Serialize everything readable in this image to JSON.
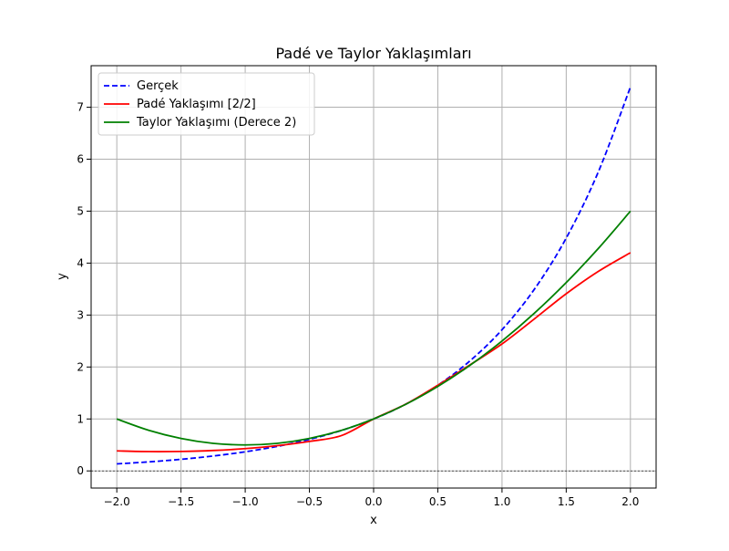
{
  "chart_data": {
    "type": "line",
    "title": "Padé ve Taylor Yaklaşımları",
    "xlabel": "x",
    "ylabel": "y",
    "xlim": [
      -2.2,
      2.2
    ],
    "ylim": [
      -0.33,
      7.8
    ],
    "xticks": [
      -2.0,
      -1.5,
      -1.0,
      -0.5,
      0.0,
      0.5,
      1.0,
      1.5,
      2.0
    ],
    "xtick_labels": [
      "−2.0",
      "−1.5",
      "−1.0",
      "−0.5",
      "0.0",
      "0.5",
      "1.0",
      "1.5",
      "2.0"
    ],
    "yticks": [
      0,
      1,
      2,
      3,
      4,
      5,
      6,
      7
    ],
    "ytick_labels": [
      "0",
      "1",
      "2",
      "3",
      "4",
      "5",
      "6",
      "7"
    ],
    "grid": true,
    "legend_position": "top-left",
    "reference_line": {
      "y": 0,
      "color": "#000000",
      "style": "dashed"
    },
    "x": [
      -2.0,
      -1.75,
      -1.5,
      -1.25,
      -1.0,
      -0.75,
      -0.5,
      -0.25,
      0.0,
      0.25,
      0.5,
      0.75,
      1.0,
      1.25,
      1.5,
      1.75,
      2.0
    ],
    "series": [
      {
        "name": "Gerçek",
        "color": "#0000ff",
        "style": "dashed",
        "values": [
          0.135,
          0.174,
          0.223,
          0.287,
          0.368,
          0.472,
          0.607,
          0.779,
          1.0,
          1.284,
          1.649,
          2.117,
          2.718,
          3.49,
          4.482,
          5.755,
          7.389
        ]
      },
      {
        "name": "Padé Yaklaşımı [2/2]",
        "color": "#ff0000",
        "style": "solid",
        "values": [
          0.385,
          0.372,
          0.375,
          0.393,
          0.429,
          0.486,
          0.568,
          0.681,
          1.0,
          1.284,
          1.649,
          2.04,
          2.444,
          2.922,
          3.41,
          3.84,
          4.2
        ]
      },
      {
        "name": "Taylor Yaklaşımı (Derece 2)",
        "color": "#008000",
        "style": "solid",
        "values": [
          1.0,
          0.781,
          0.625,
          0.531,
          0.5,
          0.531,
          0.625,
          0.781,
          1.0,
          1.281,
          1.625,
          2.031,
          2.5,
          3.031,
          3.625,
          4.281,
          5.0
        ]
      }
    ]
  }
}
